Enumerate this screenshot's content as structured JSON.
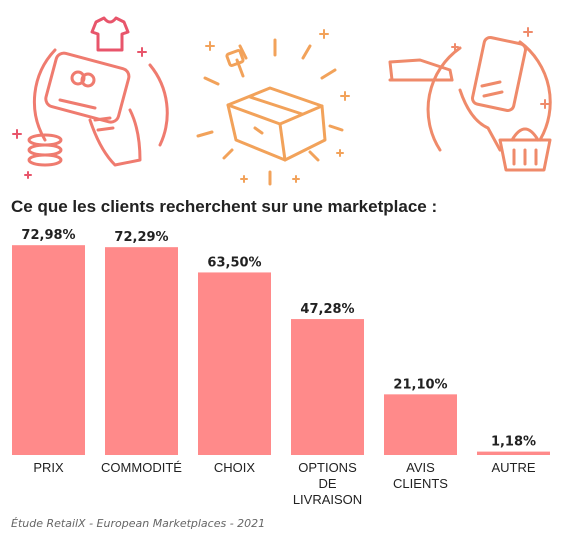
{
  "heading": "Ce que les clients recherchent sur une marketplace :",
  "source": "Étude RetailX - European Marketplaces - 2021",
  "colors": {
    "bar": "#ff8a8a",
    "illus_left": "#ef7b6f",
    "illus_mid": "#f2a25a",
    "illus_right": "#ef8a6a",
    "illus_accent": "#e8556b"
  },
  "illustrations": [
    "credit-card-hand-icon",
    "parcel-box-icon",
    "smartphone-shopping-icon"
  ],
  "chart_data": {
    "type": "bar",
    "title": "Ce que les clients recherchent sur une marketplace :",
    "categories": [
      [
        "PRIX"
      ],
      [
        "COMMODITÉ"
      ],
      [
        "CHOIX"
      ],
      [
        "OPTIONS",
        "DE",
        "LIVRAISON"
      ],
      [
        "AVIS",
        "CLIENTS"
      ],
      [
        "AUTRE"
      ]
    ],
    "values": [
      72.98,
      72.29,
      63.5,
      47.28,
      21.1,
      1.18
    ],
    "value_labels": [
      "72,98%",
      "72,29%",
      "63,50%",
      "47,28%",
      "21,10%",
      "1,18%"
    ],
    "ylim": [
      0,
      80
    ],
    "grid": false,
    "legend": "none"
  }
}
